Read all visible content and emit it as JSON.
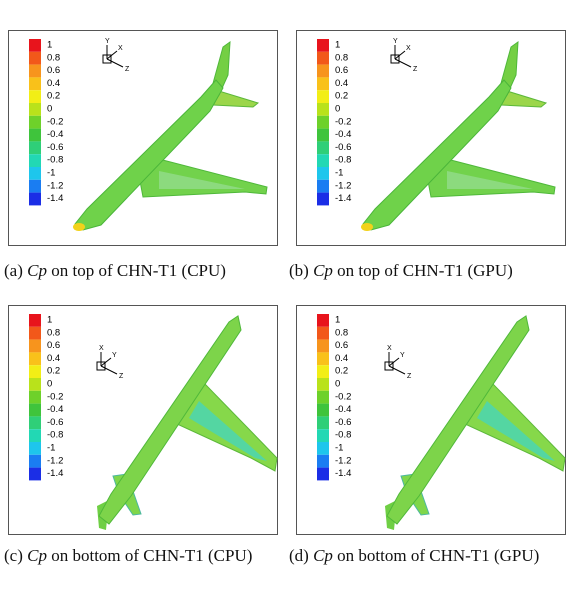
{
  "colorbar": {
    "labels": [
      1,
      0.8,
      0.6,
      0.4,
      0.2,
      0,
      -0.2,
      -0.4,
      -0.6,
      -0.8,
      -1,
      -1.2,
      -1.4
    ]
  },
  "panels": [
    {
      "label": "(a)",
      "variable": "Cp",
      "text": "on top of CHN-T1 (CPU)",
      "triad": [
        "Y",
        "X",
        "Z"
      ]
    },
    {
      "label": "(b)",
      "variable": "Cp",
      "text": "on top of CHN-T1 (GPU)",
      "triad": [
        "Y",
        "X",
        "Z"
      ]
    },
    {
      "label": "(c)",
      "variable": "Cp",
      "text": "on bottom of CHN-T1 (CPU)",
      "triad": [
        "X",
        "Y",
        "Z"
      ]
    },
    {
      "label": "(d)",
      "variable": "Cp",
      "text": "on bottom of CHN-T1 (GPU)",
      "triad": [
        "X",
        "Y",
        "Z"
      ]
    }
  ]
}
